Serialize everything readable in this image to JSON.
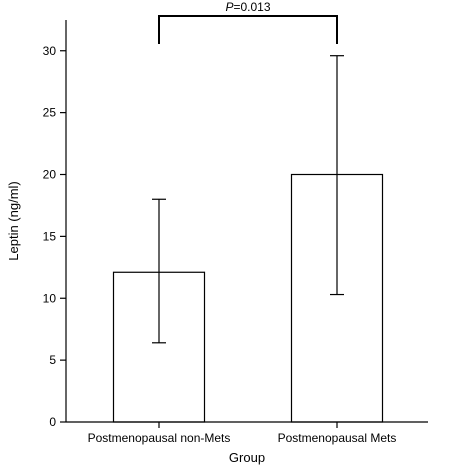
{
  "chart_data": {
    "type": "bar",
    "categories": [
      "Postmenopausal non-Mets",
      "Postmenopausal Mets"
    ],
    "values": [
      12.1,
      20.0
    ],
    "error_low": [
      6.4,
      10.3
    ],
    "error_high": [
      18.0,
      29.6
    ],
    "xlabel": "Group",
    "ylabel": "Leptin (ng/ml)",
    "ylim": [
      0,
      32
    ],
    "yticks": [
      0,
      5,
      10,
      15,
      20,
      25,
      30
    ],
    "grid": false,
    "annotation": {
      "p_letter": "P",
      "p_rest": "=0.013"
    }
  }
}
